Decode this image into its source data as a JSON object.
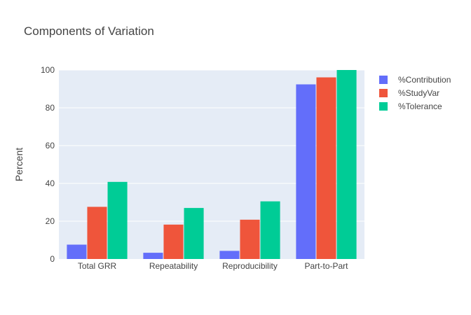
{
  "chart_data": {
    "type": "bar",
    "title": "Components of Variation",
    "xlabel": "",
    "ylabel": "Percent",
    "categories": [
      "Total GRR",
      "Repeatability",
      "Reproducibility",
      "Part-to-Part"
    ],
    "series": [
      {
        "name": "%Contribution",
        "values": [
          7.6,
          3.3,
          4.3,
          92.4
        ],
        "color": "#636efa"
      },
      {
        "name": "%StudyVar",
        "values": [
          27.6,
          18.2,
          20.8,
          96.1
        ],
        "color": "#ef553b"
      },
      {
        "name": "%Tolerance",
        "values": [
          40.8,
          27.0,
          30.5,
          100.0
        ],
        "color": "#00cc96"
      }
    ],
    "ylim": [
      0,
      100
    ],
    "yticks": [
      "0",
      "20",
      "40",
      "60",
      "80",
      "100"
    ],
    "grid": true,
    "legend_position": "top-right",
    "plot_background": "#e5ecf6"
  }
}
